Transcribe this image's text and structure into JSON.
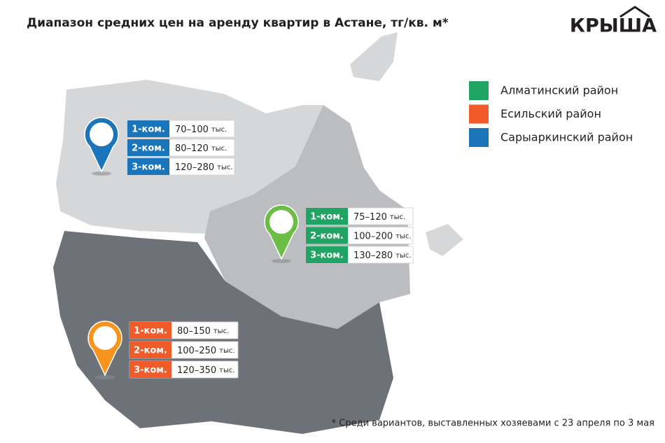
{
  "title": "Диапазон средних цен на аренду квартир в Астане, тг/кв. м*",
  "logo": "КРЫША",
  "legend": [
    {
      "label": "Алматинский район",
      "color": "#1fa463"
    },
    {
      "label": "Есильский район",
      "color": "#f15a29"
    },
    {
      "label": "Сарыаркинский район",
      "color": "#1b75bb"
    }
  ],
  "panels": [
    {
      "color": "#1b75bb",
      "pin_color": "#1b75bb",
      "rows": [
        {
          "rooms": "1-ком.",
          "price": "70–100",
          "unit": "тыс."
        },
        {
          "rooms": "2-ком.",
          "price": "80–120",
          "unit": "тыс."
        },
        {
          "rooms": "3-ком.",
          "price": "120–280",
          "unit": "тыс."
        }
      ]
    },
    {
      "color": "#1fa463",
      "pin_color": "#6cbd45",
      "rows": [
        {
          "rooms": "1-ком.",
          "price": "75–120",
          "unit": "тыс."
        },
        {
          "rooms": "2-ком.",
          "price": "100–200",
          "unit": "тыс."
        },
        {
          "rooms": "3-ком.",
          "price": "130–280",
          "unit": "тыс."
        }
      ]
    },
    {
      "color": "#f15a29",
      "pin_color": "#f7941d",
      "rows": [
        {
          "rooms": "1-ком.",
          "price": "80–150",
          "unit": "тыс."
        },
        {
          "rooms": "2-ком.",
          "price": "100–250",
          "unit": "тыс."
        },
        {
          "rooms": "3-ком.",
          "price": "120–350",
          "unit": "тыс."
        }
      ]
    }
  ],
  "footnote": "* Среди вариантов, выставленных хозяевами с 23 апреля по 3 мая"
}
